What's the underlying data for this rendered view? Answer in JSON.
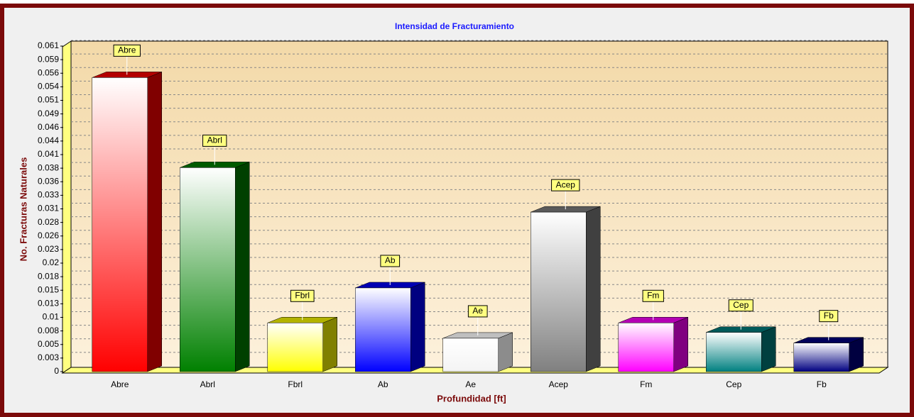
{
  "chart_data": {
    "type": "bar",
    "title": "Intensidad de Fracturamiento",
    "x_label": "Profundidad [ft]",
    "y_label": "No. Fracturas Naturales",
    "categories": [
      "Abre",
      "Abrl",
      "Fbrl",
      "Ab",
      "Ae",
      "Acep",
      "Fm",
      "Cep",
      "Fb"
    ],
    "values": [
      0.0555,
      0.0385,
      0.0092,
      0.0158,
      0.0063,
      0.0301,
      0.0092,
      0.0074,
      0.0054
    ],
    "colors": [
      "#ff0000",
      "#008000",
      "#ffff00",
      "#0000ff",
      "#ffffff",
      "#808080",
      "#ff00ff",
      "#008080",
      "#000080"
    ],
    "ylim": [
      0,
      0.0623
    ],
    "yticks": [
      0,
      {
        "value": 0.00256,
        "label": "0.003"
      },
      {
        "value": 0.00512,
        "label": "0.005"
      },
      {
        "value": 0.00768,
        "label": "0.008"
      },
      {
        "value": 0.01024,
        "label": "0.01"
      },
      {
        "value": 0.0128,
        "label": "0.013"
      },
      {
        "value": 0.01536,
        "label": "0.015"
      },
      {
        "value": 0.01792,
        "label": "0.018"
      },
      {
        "value": 0.02048,
        "label": "0.02"
      },
      {
        "value": 0.02304,
        "label": "0.023"
      },
      {
        "value": 0.0256,
        "label": "0.026"
      },
      {
        "value": 0.02816,
        "label": "0.028"
      },
      {
        "value": 0.03072,
        "label": "0.031"
      },
      {
        "value": 0.03328,
        "label": "0.033"
      },
      {
        "value": 0.03584,
        "label": "0.036"
      },
      {
        "value": 0.0384,
        "label": "0.038"
      },
      {
        "value": 0.04096,
        "label": "0.041"
      },
      {
        "value": 0.04352,
        "label": "0.044"
      },
      {
        "value": 0.04608,
        "label": "0.046"
      },
      {
        "value": 0.04864,
        "label": "0.049"
      },
      {
        "value": 0.0512,
        "label": "0.051"
      },
      {
        "value": 0.05376,
        "label": "0.054"
      },
      {
        "value": 0.05632,
        "label": "0.056"
      },
      {
        "value": 0.05888,
        "label": "0.059"
      },
      {
        "value": 0.06144,
        "label": "0.061"
      }
    ],
    "grid": true
  }
}
